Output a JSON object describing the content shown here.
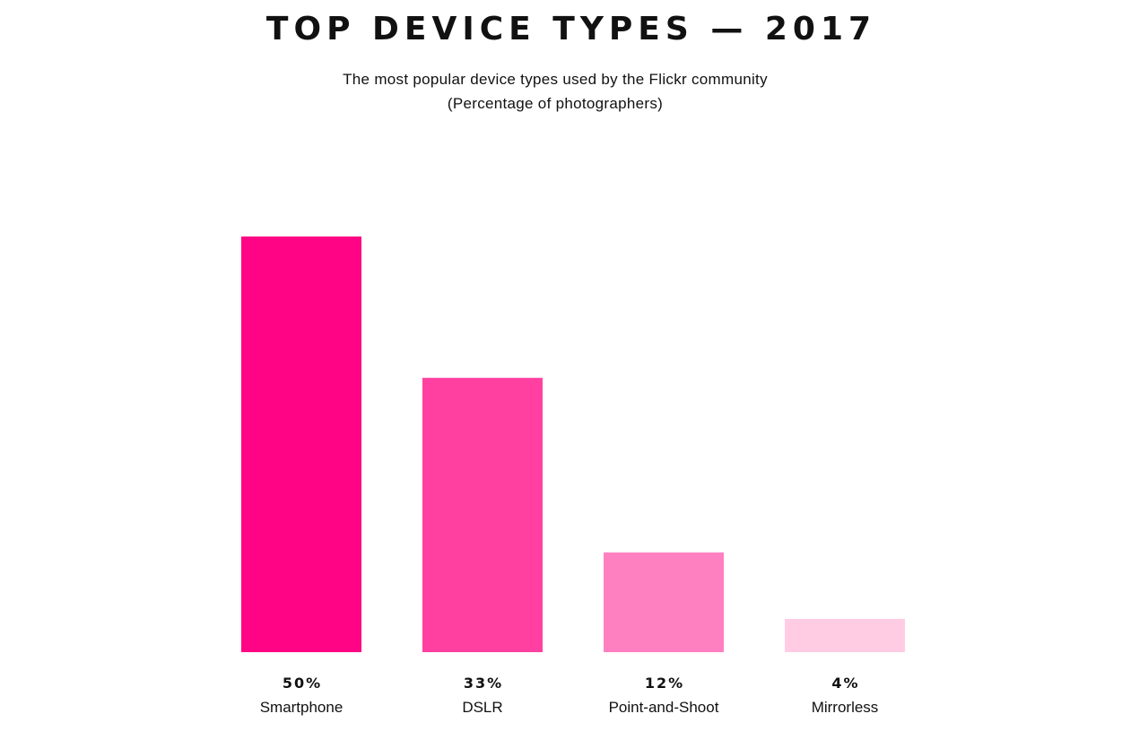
{
  "chart_data": {
    "type": "bar",
    "title": "TOP DEVICE TYPES — 2017",
    "subtitle": "The most popular device types used by the Flickr community",
    "subtitle2": "(Percentage of photographers)",
    "xlabel": "",
    "ylabel": "",
    "ylim": [
      0,
      50
    ],
    "grid": false,
    "categories": [
      "Smartphone",
      "DSLR",
      "Point-and-Shoot",
      "Mirrorless"
    ],
    "values": [
      50,
      33,
      12,
      4
    ],
    "value_labels": [
      "50%",
      "33%",
      "12%",
      "4%"
    ],
    "colors": [
      "#ff0484",
      "#ff40a0",
      "#ff80c0",
      "#ffcce4"
    ]
  }
}
